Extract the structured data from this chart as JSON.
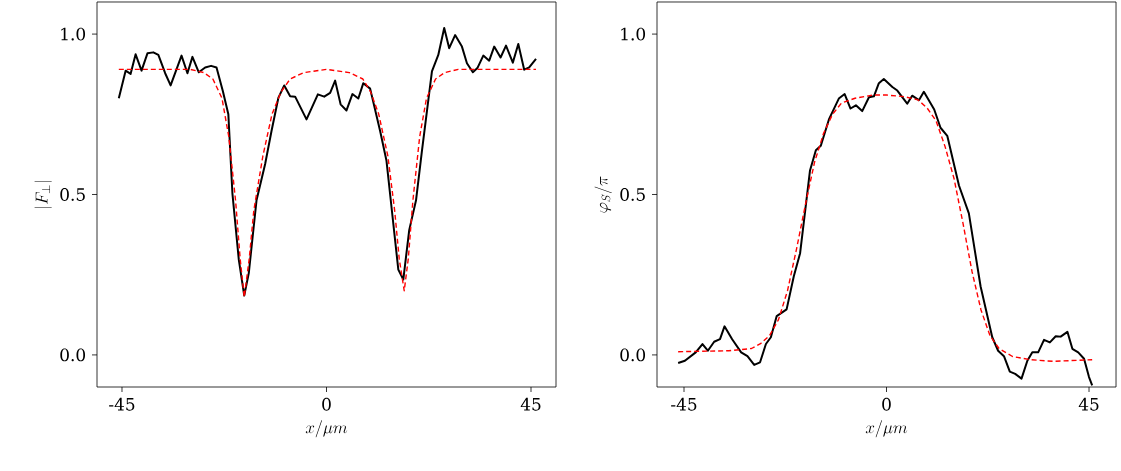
{
  "chart_data": [
    {
      "type": "line",
      "xlabel": "x/\\mu m",
      "ylabel": "|F_\\perp|",
      "xlim": [
        -50.5,
        50.5
      ],
      "ylim": [
        -0.1,
        1.1
      ],
      "xticks": [
        {
          "value": -45,
          "label": "-45"
        },
        {
          "value": 0,
          "label": "0"
        },
        {
          "value": 45,
          "label": "45"
        }
      ],
      "yticks": [
        {
          "value": 0,
          "label": "0.0"
        },
        {
          "value": 0.5,
          "label": "0.5"
        },
        {
          "value": 1,
          "label": "1.0"
        }
      ],
      "grid": false,
      "series": [
        {
          "color": "#000000",
          "line_style": "solid",
          "x": [
            -45.7,
            -44.2,
            -43.1,
            -42.0,
            -40.7,
            -39.4,
            -38.1,
            -37.0,
            -35.5,
            -34.3,
            -31.9,
            -30.6,
            -29.5,
            -28.1,
            -26.7,
            -25.4,
            -24.2,
            -22.8,
            -21.6,
            -20.7,
            -19.3,
            -18.1,
            -17.1,
            -15.4,
            -13.5,
            -12.1,
            -10.6,
            -9.3,
            -8.0,
            -6.9,
            -4.4,
            -1.9,
            -0.5,
            0.8,
            1.9,
            3.1,
            4.4,
            5.7,
            7.0,
            8.1,
            9.6,
            11.8,
            13.2,
            14.3,
            15.8,
            16.9,
            18.2,
            19.7,
            21.0,
            22.1,
            23.2,
            24.6,
            25.9,
            27.0,
            28.3,
            29.8,
            30.9,
            32.2,
            33.2,
            34.5,
            35.8,
            36.9,
            38.3,
            39.5,
            41.0,
            42.2,
            43.5,
            44.6,
            46.1
          ],
          "values": [
            0.8,
            0.886,
            0.876,
            0.937,
            0.886,
            0.94,
            0.943,
            0.935,
            0.878,
            0.84,
            0.933,
            0.878,
            0.929,
            0.881,
            0.896,
            0.901,
            0.896,
            0.822,
            0.75,
            0.503,
            0.297,
            0.185,
            0.255,
            0.482,
            0.595,
            0.698,
            0.801,
            0.84,
            0.806,
            0.805,
            0.734,
            0.812,
            0.805,
            0.817,
            0.855,
            0.781,
            0.762,
            0.813,
            0.799,
            0.847,
            0.83,
            0.698,
            0.605,
            0.461,
            0.266,
            0.235,
            0.389,
            0.482,
            0.636,
            0.76,
            0.884,
            0.935,
            1.019,
            0.956,
            0.997,
            0.961,
            0.909,
            0.881,
            0.894,
            0.933,
            0.917,
            0.961,
            0.927,
            0.964,
            0.911,
            0.969,
            0.889,
            0.896,
            0.923
          ]
        },
        {
          "color": "#ff0000",
          "line_style": "dashed",
          "x": [
            -45.7,
            -30,
            -27,
            -25,
            -23,
            -21.5,
            -20,
            -19,
            -18.1,
            -17,
            -16,
            -14,
            -12,
            -10,
            -8,
            -5,
            0,
            5,
            8,
            9.7,
            11.5,
            13.5,
            15,
            16,
            17.1,
            18,
            19,
            20.5,
            22,
            24,
            26,
            29,
            46.1
          ],
          "values": [
            0.89,
            0.89,
            0.88,
            0.86,
            0.8,
            0.68,
            0.48,
            0.3,
            0.18,
            0.3,
            0.45,
            0.62,
            0.75,
            0.82,
            0.86,
            0.88,
            0.89,
            0.88,
            0.86,
            0.82,
            0.75,
            0.62,
            0.45,
            0.3,
            0.2,
            0.3,
            0.48,
            0.68,
            0.8,
            0.86,
            0.88,
            0.89,
            0.89
          ]
        }
      ]
    },
    {
      "type": "line",
      "xlabel": "x/\\mu m",
      "ylabel": "\\varphi_S/\\pi",
      "xlim": [
        -51,
        51
      ],
      "ylim": [
        -0.1,
        1.1
      ],
      "xticks": [
        {
          "value": -45,
          "label": "-45"
        },
        {
          "value": 0,
          "label": "0"
        },
        {
          "value": 45,
          "label": "45"
        }
      ],
      "yticks": [
        {
          "value": 0,
          "label": "0.0"
        },
        {
          "value": 0.5,
          "label": "0.5"
        },
        {
          "value": 1,
          "label": "1.0"
        }
      ],
      "grid": false,
      "series": [
        {
          "color": "#000000",
          "line_style": "solid",
          "x": [
            -46.3,
            -44.8,
            -42.4,
            -40.9,
            -39.7,
            -38.3,
            -37.0,
            -36.0,
            -34.3,
            -32.3,
            -30.9,
            -29.4,
            -28.1,
            -26.8,
            -25.7,
            -24.4,
            -22.2,
            -20.6,
            -19.2,
            -17.0,
            -15.7,
            -14.6,
            -12.8,
            -10.6,
            -9.3,
            -8.0,
            -6.8,
            -5.4,
            -3.9,
            -2.8,
            -1.7,
            -0.6,
            1.3,
            2.4,
            4.6,
            5.7,
            7.2,
            8.3,
            10.6,
            12.0,
            13.5,
            16.1,
            18.3,
            20.9,
            23.5,
            24.8,
            26.1,
            27.4,
            28.6,
            30.0,
            31.3,
            32.4,
            33.7,
            35.0,
            36.3,
            37.6,
            38.7,
            40.2,
            41.3,
            42.6,
            43.9,
            45.0,
            45.7
          ],
          "values": [
            -0.025,
            -0.018,
            0.008,
            0.034,
            0.013,
            0.041,
            0.049,
            0.089,
            0.049,
            0.008,
            -0.004,
            -0.031,
            -0.023,
            0.034,
            0.055,
            0.121,
            0.142,
            0.245,
            0.317,
            0.575,
            0.638,
            0.652,
            0.734,
            0.799,
            0.813,
            0.768,
            0.778,
            0.76,
            0.803,
            0.806,
            0.847,
            0.86,
            0.835,
            0.824,
            0.783,
            0.808,
            0.794,
            0.82,
            0.765,
            0.708,
            0.683,
            0.528,
            0.441,
            0.214,
            0.055,
            0.013,
            -0.004,
            -0.052,
            -0.059,
            -0.074,
            -0.018,
            0.008,
            0.008,
            0.047,
            0.039,
            0.058,
            0.057,
            0.072,
            0.019,
            0.008,
            -0.012,
            -0.069,
            -0.095
          ]
        },
        {
          "color": "#ff0000",
          "line_style": "dashed",
          "x": [
            -46.3,
            -35,
            -30,
            -28,
            -26,
            -24,
            -22,
            -20,
            -18,
            -16,
            -14,
            -12,
            -10,
            -7,
            -3,
            0,
            4,
            7,
            9,
            11,
            13,
            15,
            17,
            19,
            21,
            23,
            25,
            28,
            32,
            37,
            45.7
          ],
          "values": [
            0.01,
            0.013,
            0.02,
            0.035,
            0.06,
            0.11,
            0.2,
            0.33,
            0.47,
            0.6,
            0.69,
            0.75,
            0.785,
            0.8,
            0.81,
            0.81,
            0.805,
            0.795,
            0.77,
            0.73,
            0.65,
            0.55,
            0.41,
            0.26,
            0.14,
            0.06,
            0.02,
            -0.005,
            -0.015,
            -0.02,
            -0.015
          ]
        }
      ]
    }
  ]
}
